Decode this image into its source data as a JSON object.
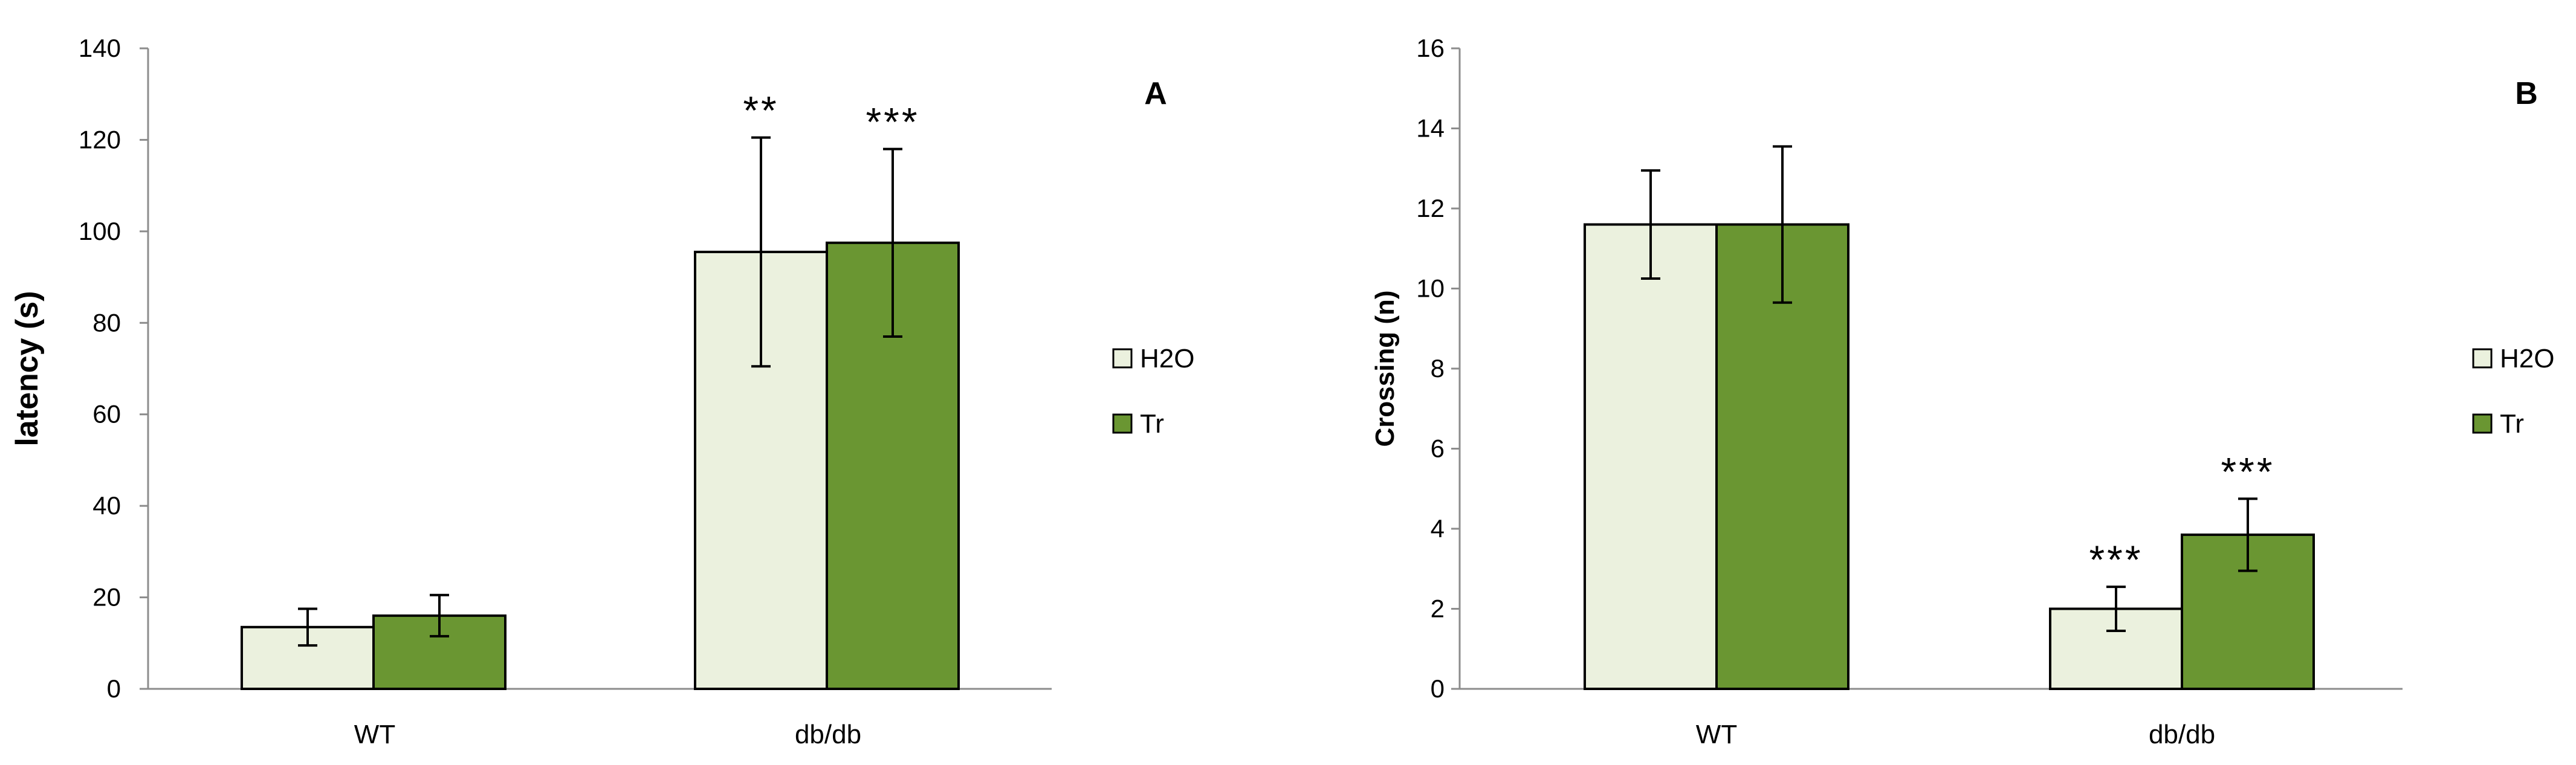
{
  "colors": {
    "H2O": "#ebf1de",
    "Tr": "#6a9632",
    "axis": "#8c8c8c",
    "ink": "#000000"
  },
  "chart_data": [
    {
      "type": "bar",
      "panel": "A",
      "ylabel": "latency (s)",
      "categories": [
        "WT",
        "db/db"
      ],
      "ylim": [
        0,
        140
      ],
      "yticks": [
        0,
        20,
        40,
        60,
        80,
        100,
        120,
        140
      ],
      "legend_position": "right",
      "series": [
        {
          "name": "H2O",
          "values": [
            13.5,
            95.5
          ],
          "errors": [
            4,
            25
          ],
          "labels": [
            "",
            "**"
          ]
        },
        {
          "name": "Tr",
          "values": [
            16,
            97.5
          ],
          "errors": [
            4.5,
            20.5
          ],
          "labels": [
            "",
            "***"
          ]
        }
      ]
    },
    {
      "type": "bar",
      "panel": "B",
      "ylabel": "Crossing (n)",
      "categories": [
        "WT",
        "db/db"
      ],
      "ylim": [
        0,
        16
      ],
      "yticks": [
        0,
        2,
        4,
        6,
        8,
        10,
        12,
        14,
        16
      ],
      "legend_position": "right",
      "series": [
        {
          "name": "H2O",
          "values": [
            11.6,
            2.0
          ],
          "errors": [
            1.35,
            0.55
          ],
          "labels": [
            "",
            "***"
          ]
        },
        {
          "name": "Tr",
          "values": [
            11.6,
            3.85
          ],
          "errors": [
            1.95,
            0.9
          ],
          "labels": [
            "",
            "***"
          ]
        }
      ]
    }
  ]
}
